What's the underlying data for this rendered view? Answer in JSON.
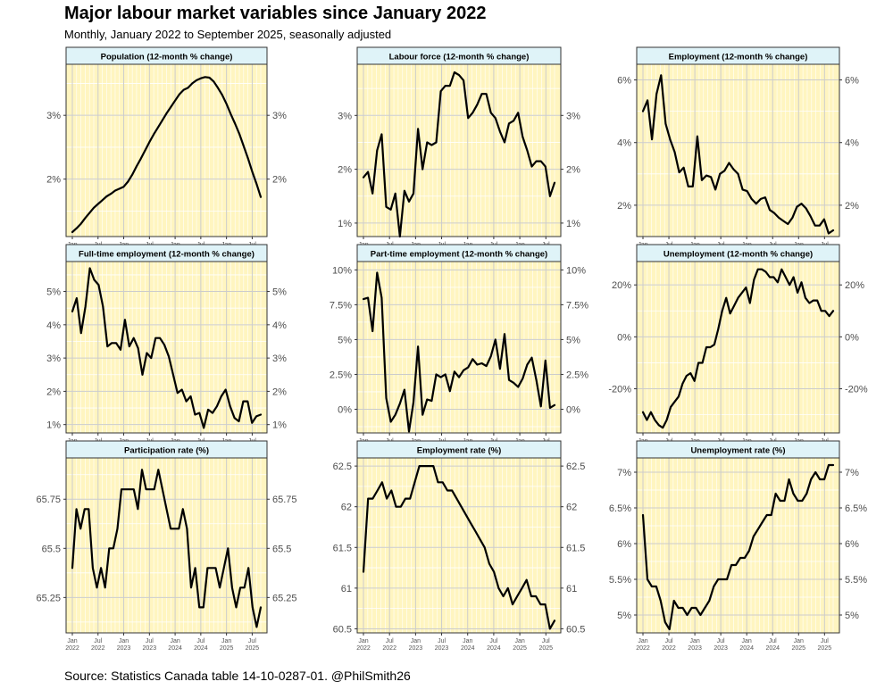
{
  "header": {
    "title": "Major labour market variables since January 2022",
    "subtitle": "Monthly, January 2022 to September 2025, seasonally adjusted"
  },
  "footer": {
    "source": "Source: Statistics Canada table 14-10-0287-01. @PhilSmith26"
  },
  "colors": {
    "panel_background": "#fff5c0",
    "strip_background": "#dff3f8",
    "line": "#000000",
    "grid": "#cccccc"
  },
  "chart_data": [
    {
      "type": "line",
      "title": "Population (12-month % change)",
      "x_start": "2022-01",
      "x_end": "2025-09",
      "ylim": [
        1.1,
        3.8
      ],
      "y_ticks": [
        2,
        3
      ],
      "y_tick_labels": [
        "2%",
        "3%"
      ],
      "values": [
        1.17,
        1.23,
        1.3,
        1.39,
        1.47,
        1.55,
        1.61,
        1.67,
        1.73,
        1.77,
        1.82,
        1.85,
        1.88,
        1.96,
        2.07,
        2.2,
        2.32,
        2.45,
        2.58,
        2.7,
        2.81,
        2.92,
        3.03,
        3.13,
        3.23,
        3.33,
        3.4,
        3.43,
        3.5,
        3.55,
        3.58,
        3.6,
        3.59,
        3.53,
        3.43,
        3.32,
        3.18,
        3.02,
        2.87,
        2.71,
        2.52,
        2.33,
        2.12,
        1.93,
        1.72
      ]
    },
    {
      "type": "line",
      "title": "Labour force (12-month % change)",
      "x_start": "2022-01",
      "x_end": "2025-09",
      "ylim": [
        0.75,
        3.95
      ],
      "y_ticks": [
        1,
        2,
        3
      ],
      "y_tick_labels": [
        "1%",
        "2%",
        "3%"
      ],
      "values": [
        1.85,
        1.95,
        1.55,
        2.35,
        2.65,
        1.3,
        1.25,
        1.55,
        0.75,
        1.6,
        1.4,
        1.55,
        2.75,
        2.0,
        2.5,
        2.45,
        2.5,
        3.45,
        3.55,
        3.55,
        3.8,
        3.75,
        3.65,
        2.95,
        3.05,
        3.2,
        3.4,
        3.4,
        3.05,
        2.95,
        2.7,
        2.5,
        2.85,
        2.9,
        3.05,
        2.6,
        2.35,
        2.05,
        2.15,
        2.15,
        2.05,
        1.5,
        1.75
      ]
    },
    {
      "type": "line",
      "title": "Employment (12-month % change)",
      "x_start": "2022-01",
      "x_end": "2025-09",
      "ylim": [
        1.0,
        6.5
      ],
      "y_ticks": [
        2,
        4,
        6
      ],
      "y_tick_labels": [
        "2%",
        "4%",
        "6%"
      ],
      "values": [
        5.0,
        5.35,
        4.1,
        5.55,
        6.15,
        4.6,
        4.1,
        3.7,
        3.05,
        3.2,
        2.6,
        2.6,
        4.2,
        2.8,
        2.95,
        2.9,
        2.5,
        3.0,
        3.1,
        3.35,
        3.15,
        3.0,
        2.5,
        2.45,
        2.2,
        2.05,
        2.2,
        2.25,
        1.85,
        1.75,
        1.6,
        1.5,
        1.4,
        1.6,
        1.95,
        2.05,
        1.9,
        1.65,
        1.35,
        1.35,
        1.55,
        1.1,
        1.2
      ]
    },
    {
      "type": "line",
      "title": "Full-time employment (12-month % change)",
      "x_start": "2022-01",
      "x_end": "2025-09",
      "ylim": [
        0.75,
        5.9
      ],
      "y_ticks": [
        1,
        2,
        3,
        4,
        5
      ],
      "y_tick_labels": [
        "1%",
        "2%",
        "3%",
        "4%",
        "5%"
      ],
      "values": [
        4.4,
        4.8,
        3.75,
        4.55,
        5.7,
        5.35,
        5.2,
        4.55,
        3.35,
        3.45,
        3.45,
        3.25,
        4.15,
        3.35,
        3.6,
        3.3,
        2.5,
        3.15,
        3.0,
        3.6,
        3.6,
        3.4,
        3.05,
        2.5,
        1.95,
        2.05,
        1.7,
        1.85,
        1.3,
        1.35,
        0.9,
        1.45,
        1.35,
        1.55,
        1.85,
        2.05,
        1.55,
        1.2,
        1.1,
        1.7,
        1.7,
        1.05,
        1.25,
        1.3
      ]
    },
    {
      "type": "line",
      "title": "Part-time employment (12-month % change)",
      "x_start": "2022-01",
      "x_end": "2025-09",
      "ylim": [
        -1.7,
        10.6
      ],
      "y_ticks": [
        0,
        2.5,
        5,
        7.5,
        10
      ],
      "y_tick_labels": [
        "0%",
        "2.5%",
        "5%",
        "7.5%",
        "10%"
      ],
      "values": [
        7.9,
        8.0,
        5.6,
        9.8,
        8.0,
        0.8,
        -0.9,
        -0.4,
        0.4,
        1.4,
        -1.6,
        0.5,
        4.5,
        -0.4,
        0.7,
        0.6,
        2.5,
        2.3,
        2.5,
        1.3,
        2.7,
        2.3,
        2.8,
        3.0,
        3.6,
        3.2,
        3.3,
        3.1,
        3.8,
        5.0,
        2.9,
        5.4,
        2.1,
        1.9,
        1.6,
        2.2,
        3.2,
        3.7,
        2.1,
        0.2,
        3.5,
        0.1,
        0.3
      ]
    },
    {
      "type": "line",
      "title": "Unemployment (12-month % change)",
      "x_start": "2022-01",
      "x_end": "2025-09",
      "ylim": [
        -37,
        29
      ],
      "y_ticks": [
        -20,
        0,
        20
      ],
      "y_tick_labels": [
        "-20%",
        "0%",
        "20%"
      ],
      "values": [
        -29,
        -32,
        -29,
        -32,
        -34,
        -35,
        -32,
        -27,
        -25,
        -23,
        -18,
        -15,
        -14,
        -17,
        -10,
        -10,
        -4,
        -4,
        -3,
        3,
        10,
        15,
        9,
        12,
        15,
        17,
        19,
        13,
        22,
        26,
        26,
        25,
        23,
        23,
        21,
        26,
        23,
        20,
        23,
        17,
        21,
        15,
        13,
        14,
        14,
        10,
        10,
        8,
        10
      ]
    },
    {
      "type": "line",
      "title": "Participation rate (%)",
      "x_start": "2022-01",
      "x_end": "2025-09",
      "ylim": [
        65.07,
        65.96
      ],
      "y_ticks": [
        65.25,
        65.5,
        65.75
      ],
      "y_tick_labels": [
        "65.25",
        "65.5",
        "65.75"
      ],
      "values": [
        65.4,
        65.7,
        65.6,
        65.7,
        65.7,
        65.4,
        65.3,
        65.4,
        65.3,
        65.5,
        65.5,
        65.6,
        65.8,
        65.8,
        65.8,
        65.8,
        65.7,
        65.9,
        65.8,
        65.8,
        65.8,
        65.9,
        65.8,
        65.7,
        65.6,
        65.6,
        65.6,
        65.7,
        65.6,
        65.3,
        65.4,
        65.2,
        65.2,
        65.4,
        65.4,
        65.4,
        65.3,
        65.4,
        65.5,
        65.3,
        65.2,
        65.3,
        65.3,
        65.4,
        65.2,
        65.1,
        65.2
      ]
    },
    {
      "type": "line",
      "title": "Employment rate (%)",
      "x_start": "2022-01",
      "x_end": "2025-09",
      "ylim": [
        60.45,
        62.6
      ],
      "y_ticks": [
        60.5,
        61,
        61.5,
        62,
        62.5
      ],
      "y_tick_labels": [
        "60.5",
        "61",
        "61.5",
        "62",
        "62.5"
      ],
      "values": [
        61.2,
        62.1,
        62.1,
        62.2,
        62.3,
        62.1,
        62.2,
        62.0,
        62.0,
        62.1,
        62.1,
        62.3,
        62.5,
        62.5,
        62.5,
        62.5,
        62.3,
        62.3,
        62.2,
        62.2,
        62.1,
        62.0,
        61.9,
        61.8,
        61.7,
        61.6,
        61.5,
        61.3,
        61.2,
        61.0,
        60.9,
        61.0,
        60.8,
        60.9,
        61.0,
        61.1,
        60.9,
        60.9,
        60.8,
        60.8,
        60.5,
        60.6
      ]
    },
    {
      "type": "line",
      "title": "Unemployment rate (%)",
      "x_start": "2022-01",
      "x_end": "2025-09",
      "ylim": [
        4.75,
        7.2
      ],
      "y_ticks": [
        5,
        5.5,
        6,
        6.5,
        7
      ],
      "y_tick_labels": [
        "5%",
        "5.5%",
        "6%",
        "6.5%",
        "7%"
      ],
      "values": [
        6.4,
        5.5,
        5.4,
        5.4,
        5.2,
        4.9,
        4.8,
        5.2,
        5.1,
        5.1,
        5.0,
        5.1,
        5.1,
        5.0,
        5.1,
        5.2,
        5.4,
        5.5,
        5.5,
        5.5,
        5.7,
        5.7,
        5.8,
        5.8,
        5.9,
        6.1,
        6.2,
        6.3,
        6.4,
        6.4,
        6.7,
        6.6,
        6.6,
        6.9,
        6.7,
        6.6,
        6.6,
        6.7,
        6.9,
        7.0,
        6.9,
        6.9,
        7.1,
        7.1
      ]
    }
  ],
  "x_axis_ticks": [
    {
      "month": "Jan",
      "year": "2022"
    },
    {
      "month": "Jul",
      "year": "2022"
    },
    {
      "month": "Jan",
      "year": "2023"
    },
    {
      "month": "Jul",
      "year": "2023"
    },
    {
      "month": "Jan",
      "year": "2024"
    },
    {
      "month": "Jul",
      "year": "2024"
    },
    {
      "month": "Jan",
      "year": "2025"
    },
    {
      "month": "Jul",
      "year": "2025"
    }
  ]
}
